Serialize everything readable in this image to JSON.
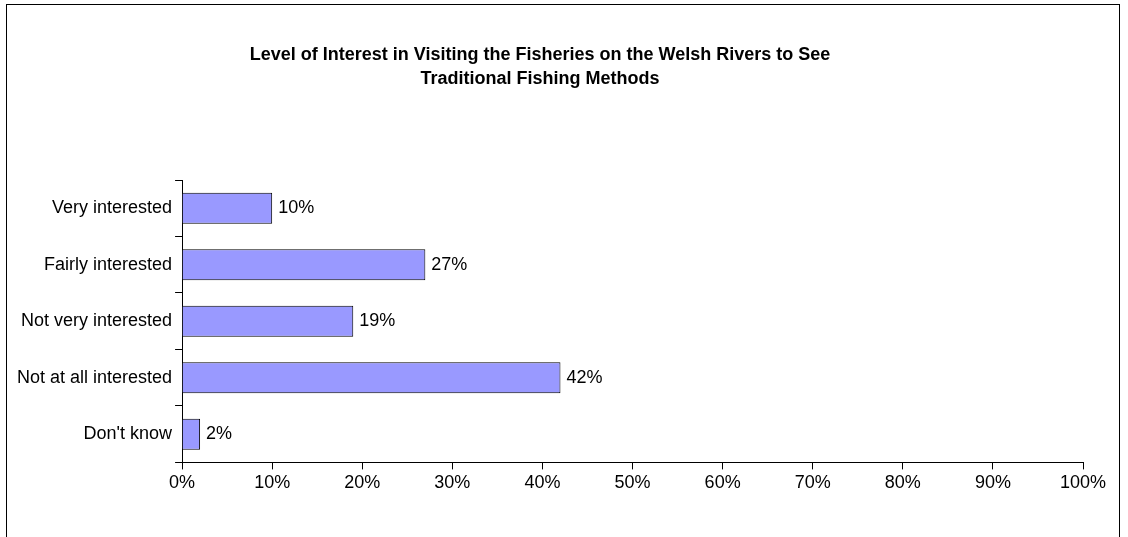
{
  "chart_data": {
    "type": "bar",
    "orientation": "horizontal",
    "title": "Level of Interest in Visiting the Fisheries on the Welsh Rivers to See Traditional Fishing Methods",
    "categories": [
      "Very interested",
      "Fairly interested",
      "Not very interested",
      "Not at all interested",
      "Don't know"
    ],
    "values": [
      10,
      27,
      19,
      42,
      2
    ],
    "value_labels": [
      "10%",
      "27%",
      "19%",
      "42%",
      "2%"
    ],
    "color": "#9999ff",
    "xlim": [
      0,
      100
    ],
    "xticks": [
      {
        "value": 0,
        "label": "0%"
      },
      {
        "value": 10,
        "label": "10%"
      },
      {
        "value": 20,
        "label": "20%"
      },
      {
        "value": 30,
        "label": "30%"
      },
      {
        "value": 40,
        "label": "40%"
      },
      {
        "value": 50,
        "label": "50%"
      },
      {
        "value": 60,
        "label": "60%"
      },
      {
        "value": 70,
        "label": "70%"
      },
      {
        "value": 80,
        "label": "80%"
      },
      {
        "value": 90,
        "label": "90%"
      },
      {
        "value": 100,
        "label": "100%"
      }
    ],
    "grid": false,
    "legend": false
  }
}
